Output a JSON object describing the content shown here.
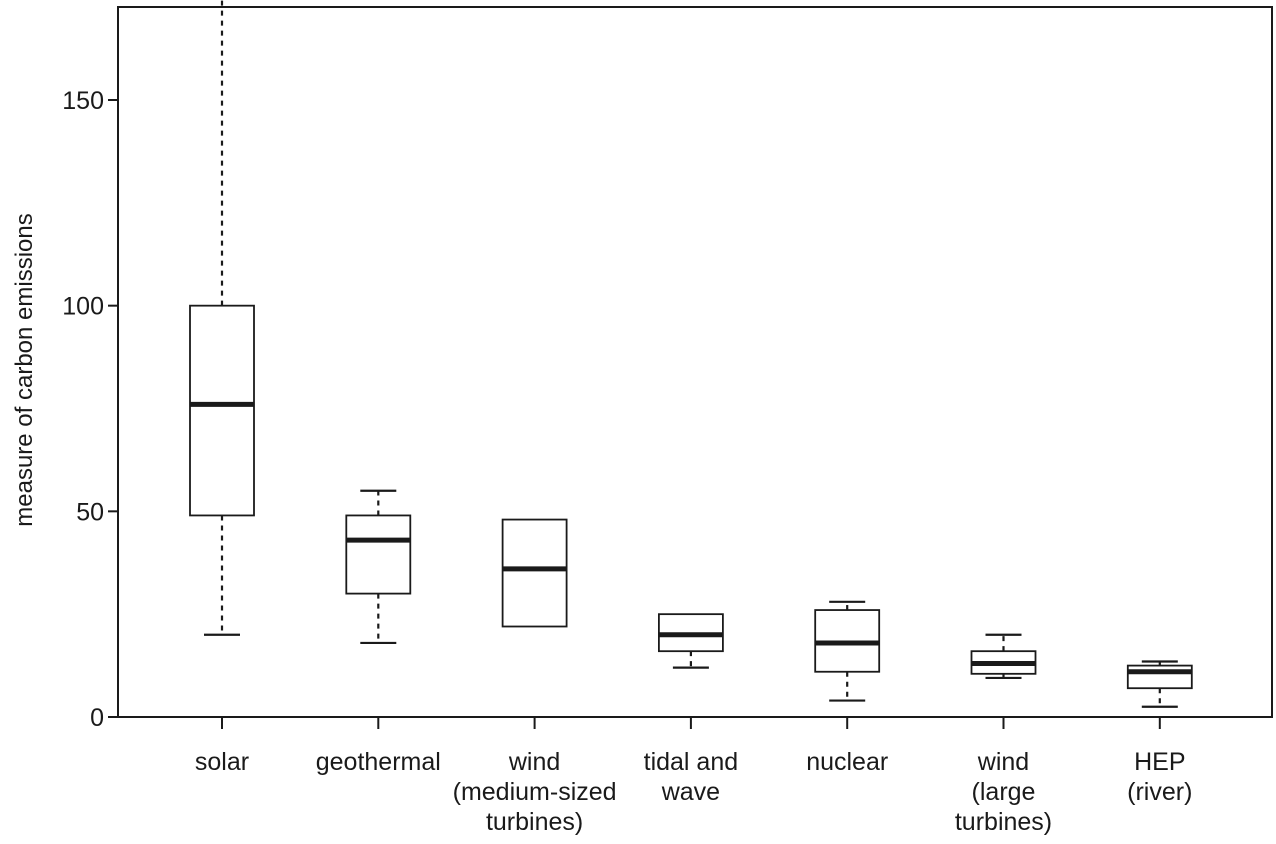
{
  "chart_data": {
    "type": "boxplot",
    "title": "",
    "xlabel": "",
    "ylabel": "measure of carbon emissions",
    "ylim": [
      0,
      170
    ],
    "yticks": [
      0,
      50,
      100,
      150
    ],
    "grid": false,
    "categories": [
      [
        "solar"
      ],
      [
        "geothermal"
      ],
      [
        "wind",
        "(medium-sized",
        "turbines)"
      ],
      [
        "tidal and",
        "wave"
      ],
      [
        "nuclear"
      ],
      [
        "wind",
        "(large",
        "turbines)"
      ],
      [
        "HEP",
        "(river)"
      ]
    ],
    "boxes": [
      {
        "min": 20,
        "q1": 49,
        "median": 76,
        "q3": 100,
        "max": 176
      },
      {
        "min": 18,
        "q1": 30,
        "median": 43,
        "q3": 49,
        "max": 55
      },
      {
        "min": 22,
        "q1": 22,
        "median": 36,
        "q3": 48,
        "max": 48
      },
      {
        "min": 12,
        "q1": 16,
        "median": 20,
        "q3": 25,
        "max": 25
      },
      {
        "min": 4,
        "q1": 11,
        "median": 18,
        "q3": 26,
        "max": 28
      },
      {
        "min": 9.5,
        "q1": 10.5,
        "median": 13,
        "q3": 16,
        "max": 20
      },
      {
        "min": 2.5,
        "q1": 7,
        "median": 11,
        "q3": 12.5,
        "max": 13.5
      }
    ]
  }
}
